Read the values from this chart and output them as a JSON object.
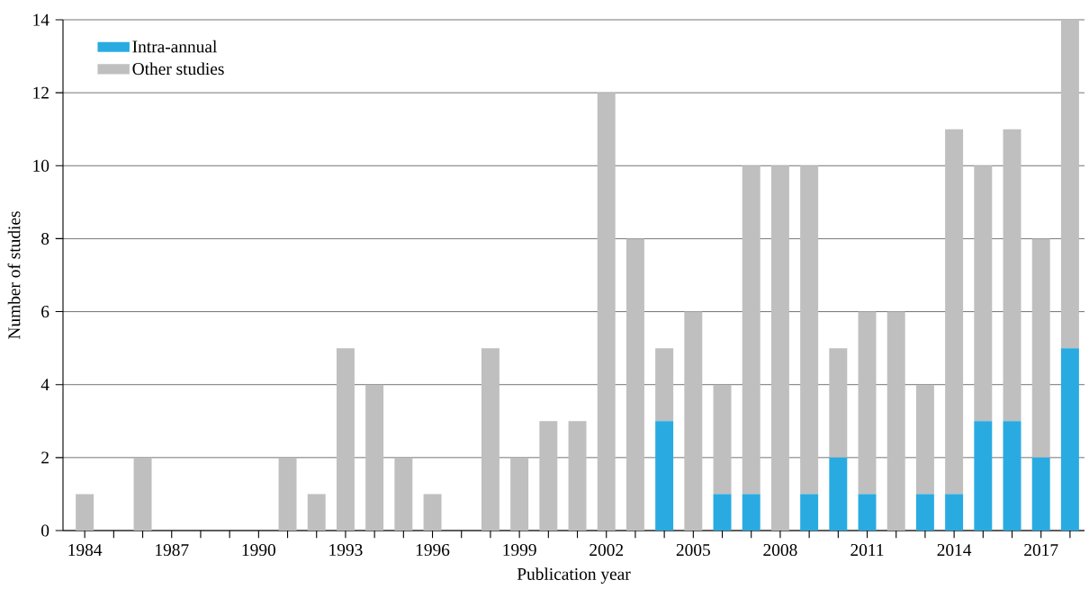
{
  "chart_data": {
    "type": "bar",
    "stacked": true,
    "xlabel": "Publication year",
    "ylabel": "Number of studies",
    "categories": [
      "1984",
      null,
      null,
      "1987",
      null,
      null,
      "1990",
      null,
      null,
      "1993",
      null,
      null,
      "1996",
      null,
      null,
      "1999",
      null,
      null,
      "2002",
      null,
      null,
      "2005",
      null,
      null,
      "2008",
      null,
      null,
      "2011",
      null,
      null,
      "2014",
      null,
      null,
      "2017",
      null
    ],
    "series": [
      {
        "name": "Intra-annual",
        "color": "#29abe2",
        "values": [
          0,
          0,
          0,
          0,
          0,
          0,
          0,
          0,
          0,
          0,
          0,
          0,
          0,
          0,
          0,
          0,
          0,
          0,
          0,
          0,
          3,
          0,
          1,
          1,
          0,
          1,
          2,
          1,
          0,
          1,
          1,
          3,
          3,
          2,
          5
        ]
      },
      {
        "name": "Other studies",
        "color": "#bfbfbf",
        "values": [
          1,
          0,
          2,
          0,
          0,
          0,
          0,
          2,
          1,
          5,
          4,
          2,
          1,
          0,
          5,
          2,
          3,
          3,
          12,
          8,
          2,
          6,
          3,
          9,
          10,
          9,
          3,
          5,
          6,
          3,
          10,
          7,
          8,
          6,
          9
        ]
      }
    ],
    "ylim": [
      0,
      14
    ],
    "yticks": [
      0,
      2,
      4,
      6,
      8,
      10,
      12,
      14
    ],
    "grid": "y",
    "legend": "top left"
  }
}
